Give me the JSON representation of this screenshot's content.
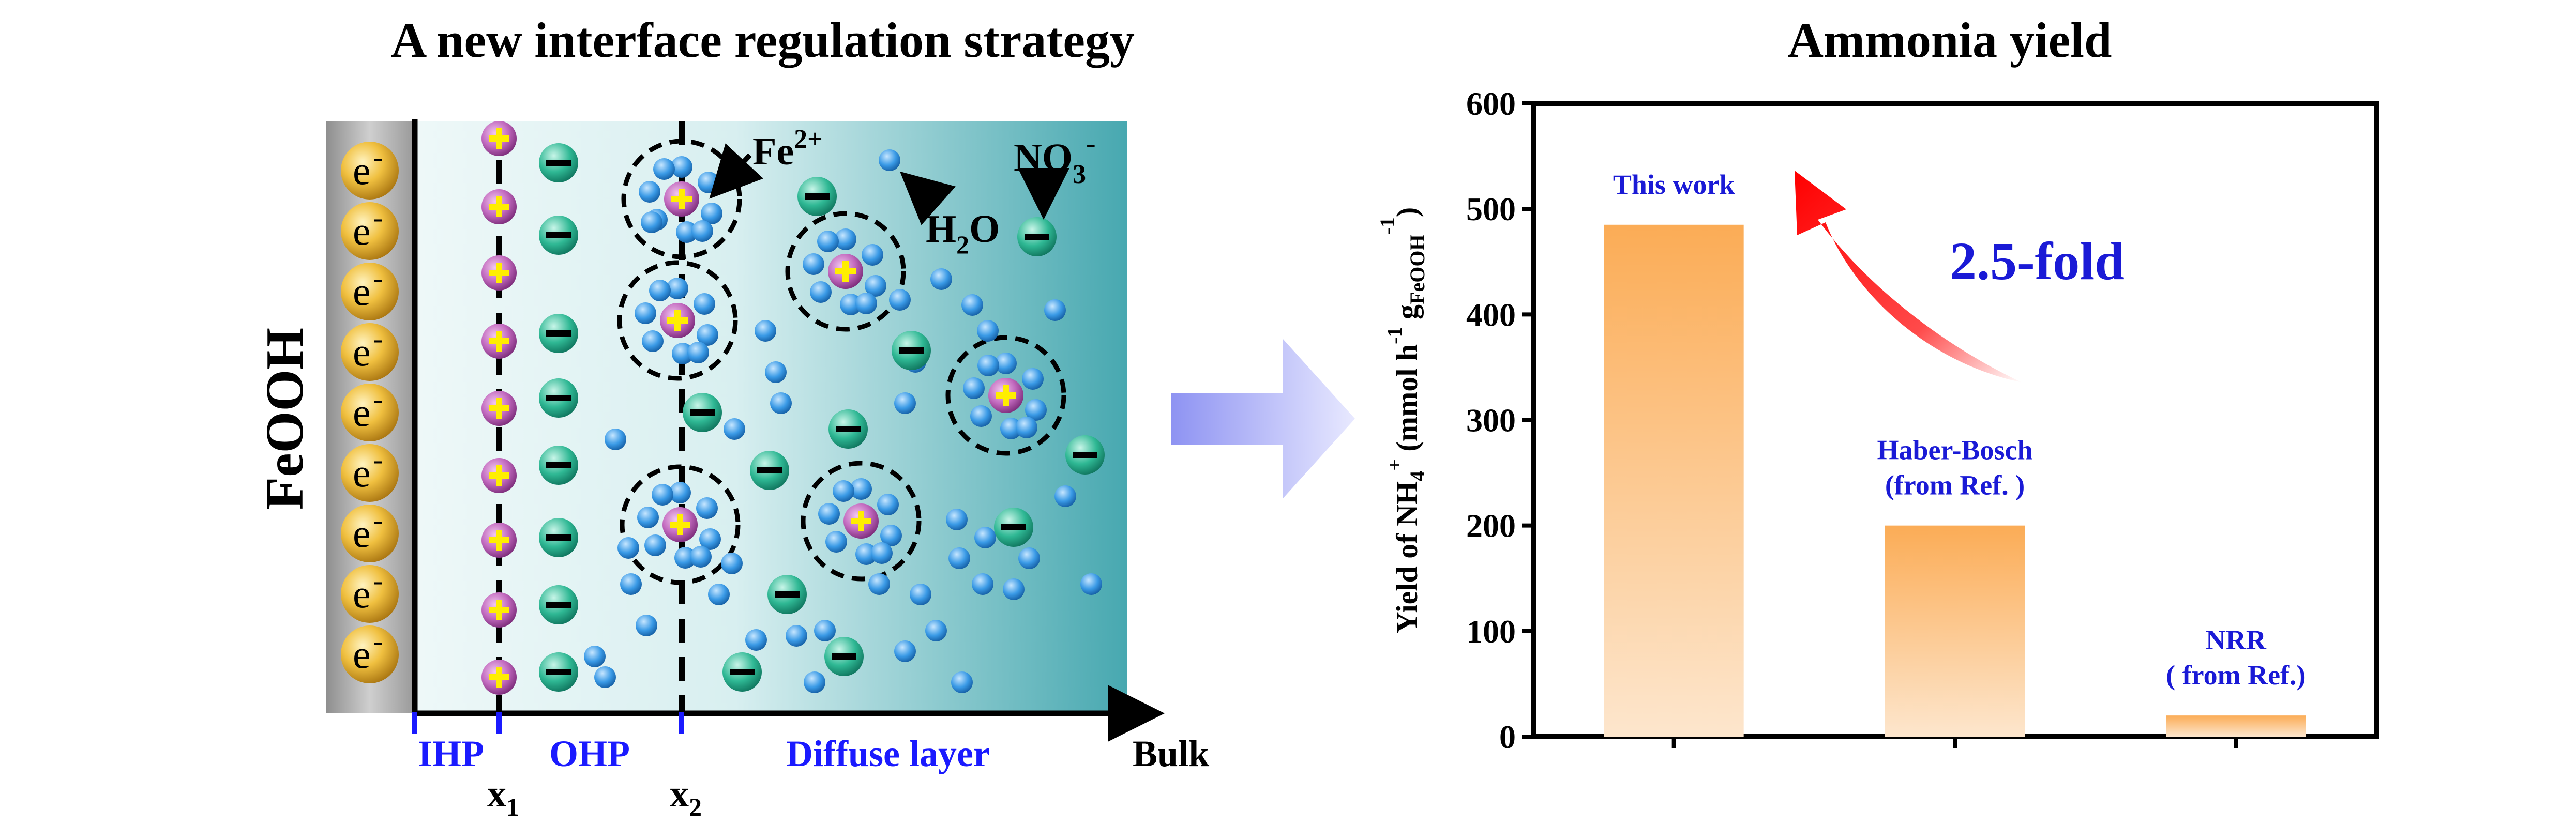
{
  "left_panel": {
    "title": "A new interface regulation strategy",
    "electrode_label": "FeOOH",
    "electron_symbol": "e",
    "electron_charge": "-",
    "ion_fe": "Fe",
    "ion_fe_charge": "2+",
    "ion_no3_base": "NO",
    "ion_no3_sub": "3",
    "ion_no3_charge": "-",
    "water_h": "H",
    "water_sub": "2",
    "water_o": "O",
    "layers": {
      "ihp": "IHP",
      "ohp": "OHP",
      "diffuse": "Diffuse layer",
      "bulk": "Bulk",
      "x1_base": "x",
      "x1_sub": "1",
      "x2_base": "x",
      "x2_sub": "2"
    },
    "colors": {
      "electrode": "#b3b3b3",
      "electron": "#e6b22a",
      "cation": "#b85cb3",
      "anion": "#1fa58a",
      "water": "#2f8fe0",
      "layer_label": "#1a1aff",
      "solution_light": "#eaf6f7",
      "solution_dark": "#4aa9b0"
    }
  },
  "right_panel": {
    "arrow_color": "#9fa3f5",
    "curved_arrow_color": "#ff1a1a",
    "annotation_fold": "2.5-fold",
    "annotation_color": "#1a1ad6"
  },
  "chart_data": {
    "type": "bar",
    "title": "Ammonia yield",
    "categories": [
      "This work",
      "Haber-Bosch (from Ref. )",
      "NRR ( from Ref.)"
    ],
    "category_labels": [
      [
        "This work"
      ],
      [
        "Haber-Bosch",
        "(from Ref. )"
      ],
      [
        "NRR",
        "( from Ref.)"
      ]
    ],
    "values": [
      485,
      200,
      20
    ],
    "ylabel": "Yield of NH4+ (mmol h-1 gFeOOH-1)",
    "ylabel_parts": {
      "a": "Yield of NH",
      "a_sub": "4",
      "a_sup": "+",
      "b": " (mmol h",
      "b_sup": "-1",
      "c": " g",
      "c_sub": "FeOOH",
      "d_sup": "-1",
      "e": ")"
    },
    "ylim": [
      0,
      600
    ],
    "yticks": [
      "0",
      "100",
      "200",
      "300",
      "400",
      "500",
      "600"
    ],
    "bar_color_top": "#fbae5c",
    "bar_color_bottom": "#fde3c8",
    "label_color": "#1a1ad6"
  }
}
